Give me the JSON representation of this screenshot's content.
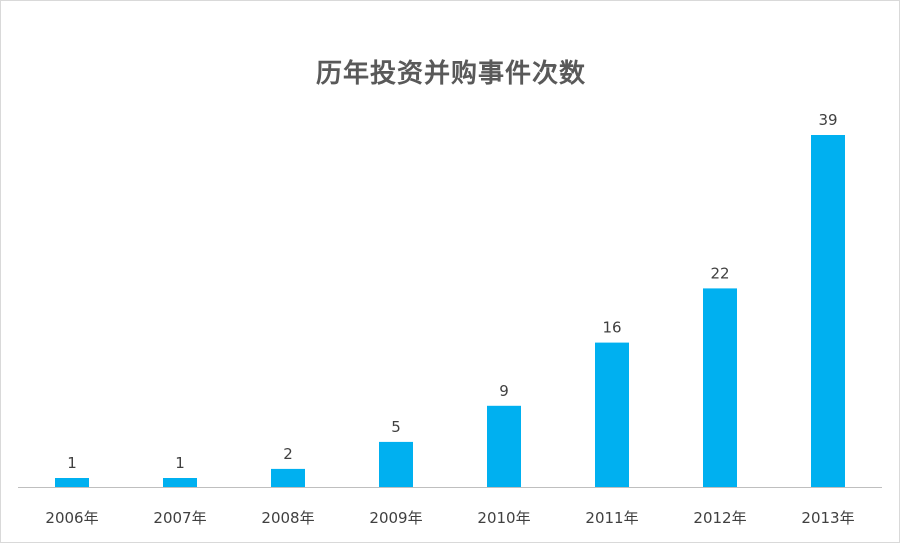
{
  "chart_data": {
    "type": "bar",
    "title": "历年投资并购事件次数",
    "categories": [
      "2006年",
      "2007年",
      "2008年",
      "2009年",
      "2010年",
      "2011年",
      "2012年",
      "2013年"
    ],
    "values": [
      1,
      1,
      2,
      5,
      9,
      16,
      22,
      39
    ],
    "xlabel": "",
    "ylabel": "",
    "ylim": [
      0,
      39
    ],
    "grid": false,
    "legend": "none",
    "bar_color": "#00b0f0",
    "text_color": "#404040",
    "title_color": "#595959"
  }
}
